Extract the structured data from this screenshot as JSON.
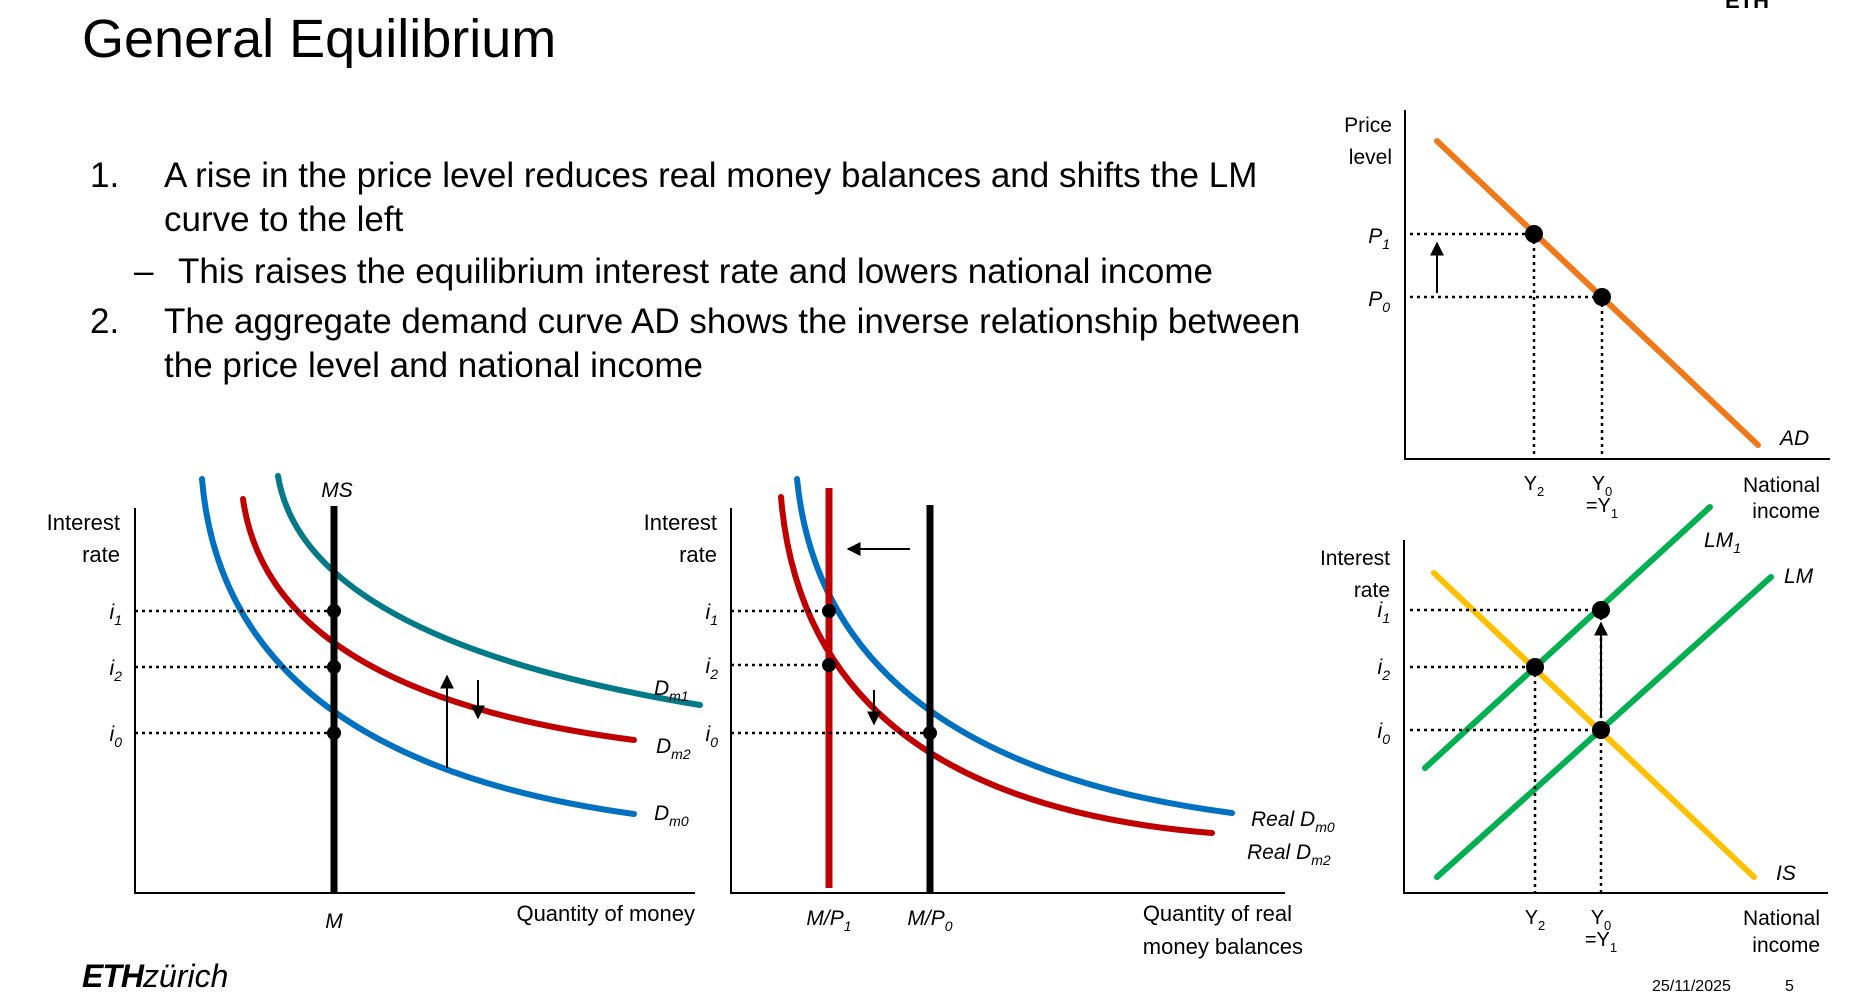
{
  "slide": {
    "title": "General Equilibrium",
    "corner_mark": "ETH",
    "bullets": [
      {
        "num": "1.",
        "text": "A rise in the price level reduces real money balances and shifts the LM curve to the left"
      },
      {
        "num": "2.",
        "text": "The aggregate demand curve AD shows the inverse relationship between the price level and national income"
      }
    ],
    "sub_bullet": {
      "dash": "–",
      "text": "This raises the equilibrium interest rate and lowers national income"
    },
    "footer": {
      "logo_bold": "ETH",
      "logo_rest": "zürich",
      "date": "25/11/2025",
      "page": "5"
    }
  },
  "panels": {
    "money": {
      "ylabel": [
        "Interest",
        "rate"
      ],
      "xlabel": "Quantity of money",
      "supply_label": "MS",
      "x_tick": "M",
      "rates": [
        {
          "base": "i",
          "sub": "1"
        },
        {
          "base": "i",
          "sub": "2"
        },
        {
          "base": "i",
          "sub": "0"
        }
      ],
      "curves": [
        {
          "base": "D",
          "sub": "m1",
          "color": "#007a87"
        },
        {
          "base": "D",
          "sub": "m2",
          "color": "#c00000"
        },
        {
          "base": "D",
          "sub": "m0",
          "color": "#0070c0"
        }
      ]
    },
    "real_money": {
      "ylabel": [
        "Interest",
        "rate"
      ],
      "xlabel": [
        "Quantity of real",
        "money balances"
      ],
      "rates": [
        {
          "base": "i",
          "sub": "1"
        },
        {
          "base": "i",
          "sub": "2"
        },
        {
          "base": "i",
          "sub": "0"
        }
      ],
      "x_ticks": [
        {
          "base": "M/P",
          "sub": "1"
        },
        {
          "base": "M/P",
          "sub": "0"
        }
      ],
      "curves": [
        {
          "base": "Real D",
          "sub": "m0",
          "color": "#0070c0"
        },
        {
          "base": "Real D",
          "sub": "m2",
          "color": "#c00000"
        }
      ]
    },
    "ad": {
      "ylabel": [
        "Price",
        "level"
      ],
      "xlabel": [
        "National",
        "income"
      ],
      "prices": [
        {
          "base": "P",
          "sub": "1"
        },
        {
          "base": "P",
          "sub": "0"
        }
      ],
      "x_ticks": [
        {
          "base": "Y",
          "sub": "2"
        },
        {
          "base": "Y",
          "sub": "0"
        }
      ],
      "x_tick_eq": {
        "base": "=Y",
        "sub": "1"
      },
      "curve": {
        "label": "AD",
        "color": "#f07818"
      }
    },
    "islm": {
      "ylabel": [
        "Interest",
        "rate"
      ],
      "xlabel": [
        "National",
        "income"
      ],
      "rates": [
        {
          "base": "i",
          "sub": "1"
        },
        {
          "base": "i",
          "sub": "2"
        },
        {
          "base": "i",
          "sub": "0"
        }
      ],
      "x_ticks": [
        {
          "base": "Y",
          "sub": "2"
        },
        {
          "base": "Y",
          "sub": "0"
        }
      ],
      "x_tick_eq": {
        "base": "=Y",
        "sub": "1"
      },
      "curves": [
        {
          "base": "LM",
          "sub": "1",
          "color": "#00b050"
        },
        {
          "base": "LM",
          "sub": "",
          "color": "#00b050"
        },
        {
          "base": "IS",
          "sub": "",
          "color": "#ffc000"
        }
      ]
    }
  }
}
